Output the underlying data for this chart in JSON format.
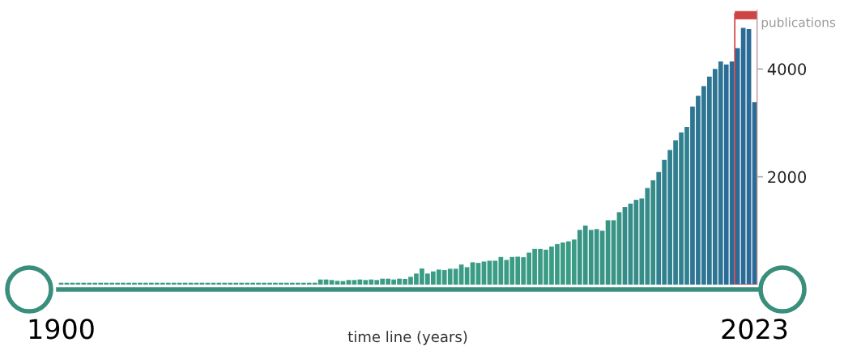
{
  "chart_data": {
    "type": "bar",
    "ylabel": "publications",
    "xlabel": "time line (years)",
    "categories": [
      "1900",
      null,
      null,
      null,
      null,
      null,
      null,
      null,
      null,
      null,
      null,
      null,
      null,
      null,
      null,
      null,
      null,
      null,
      null,
      null,
      null,
      null,
      null,
      null,
      null,
      null,
      null,
      null,
      null,
      null,
      null,
      null,
      null,
      null,
      null,
      null,
      null,
      null,
      null,
      null,
      null,
      null,
      null,
      null,
      null,
      null,
      null,
      null,
      null,
      null,
      null,
      null,
      null,
      null,
      null,
      null,
      null,
      null,
      null,
      null,
      null,
      null,
      null,
      null,
      null,
      null,
      null,
      null,
      null,
      null,
      null,
      null,
      null,
      null,
      null,
      null,
      null,
      null,
      null,
      null,
      null,
      null,
      null,
      null,
      null,
      null,
      null,
      null,
      null,
      null,
      null,
      null,
      null,
      null,
      null,
      null,
      null,
      null,
      null,
      null,
      null,
      null,
      null,
      null,
      null,
      null,
      null,
      null,
      null,
      null,
      null,
      null,
      null,
      null,
      null,
      null,
      null,
      null,
      null,
      null,
      null,
      null,
      null,
      "2023"
    ],
    "values": [
      35,
      35,
      35,
      35,
      35,
      35,
      35,
      35,
      35,
      35,
      35,
      35,
      35,
      35,
      35,
      35,
      35,
      35,
      35,
      35,
      35,
      35,
      35,
      35,
      35,
      35,
      35,
      35,
      35,
      35,
      35,
      35,
      35,
      35,
      35,
      35,
      35,
      35,
      35,
      35,
      35,
      35,
      35,
      35,
      35,
      35,
      95,
      95,
      85,
      70,
      65,
      85,
      85,
      95,
      85,
      95,
      85,
      110,
      110,
      95,
      110,
      105,
      145,
      205,
      299,
      205,
      245,
      279,
      269,
      294,
      294,
      373,
      324,
      414,
      403,
      428,
      443,
      443,
      513,
      458,
      513,
      518,
      508,
      593,
      662,
      662,
      648,
      707,
      752,
      782,
      802,
      836,
      1015,
      1096,
      1015,
      1030,
      1000,
      1194,
      1194,
      1344,
      1439,
      1503,
      1573,
      1598,
      1792,
      1936,
      2090,
      2314,
      2499,
      2678,
      2822,
      2926,
      3305,
      3504,
      3683,
      3858,
      4001,
      4141,
      4082,
      4141,
      4389,
      4763,
      4739,
      3385
    ],
    "colors": [
      "#3b9c86",
      "#3b9c86",
      "#3b9c86",
      "#3b9c86",
      "#3b9c86",
      "#3b9c86",
      "#3b9c86",
      "#3b9c86",
      "#3b9c86",
      "#3b9c86",
      "#3b9c86",
      "#3b9c86",
      "#3b9c86",
      "#3b9c86",
      "#3b9c86",
      "#3b9c86",
      "#3b9c86",
      "#3b9c86",
      "#3b9c86",
      "#3b9c86",
      "#3b9c86",
      "#3b9c86",
      "#3b9c86",
      "#3b9c86",
      "#3b9c86",
      "#3b9c86",
      "#3b9c86",
      "#3b9c86",
      "#3b9c86",
      "#3b9c86",
      "#3b9c86",
      "#3b9c86",
      "#3b9c86",
      "#3b9c86",
      "#3b9c86",
      "#3b9c86",
      "#3b9c86",
      "#3b9c86",
      "#3b9c86",
      "#3b9c86",
      "#3b9c86",
      "#3b9c86",
      "#3b9c86",
      "#3b9c86",
      "#3b9c86",
      "#3b9c86",
      "#3b9c86",
      "#3b9c86",
      "#3b9c86",
      "#3b9c86",
      "#3b9c86",
      "#3b9c86",
      "#3b9c86",
      "#3b9c86",
      "#3b9c86",
      "#3b9c86",
      "#3b9c86",
      "#3b9c86",
      "#3b9c86",
      "#3b9c86",
      "#3b9c86",
      "#3b9c86",
      "#3b9c86",
      "#3b9c86",
      "#3b9c86",
      "#3b9c86",
      "#3b9c86",
      "#3b9c86",
      "#3b9c86",
      "#3b9c86",
      "#3b9c86",
      "#3b9c86",
      "#3b9c86",
      "#3b9c86",
      "#3b9c86",
      "#3b9c86",
      "#3b9c86",
      "#3b9c86",
      "#3b9c86",
      "#3b9c86",
      "#3b9c86",
      "#3b9c86",
      "#3b9c86",
      "#3b9c86",
      "#3b9c86",
      "#3b9c86",
      "#3b9c86",
      "#3b9c86",
      "#3b9c86",
      "#3b9c86",
      "#3b9c86",
      "#3b9c86",
      "#389585",
      "#389585",
      "#389585",
      "#389585",
      "#389585",
      "#389585",
      "#389585",
      "#389585",
      "#358c89",
      "#358c89",
      "#358c89",
      "#358c89",
      "#358c89",
      "#358c89",
      "#31808f",
      "#31808f",
      "#31808f",
      "#31808f",
      "#31808f",
      "#31808f",
      "#2e7594",
      "#2e7594",
      "#2e7594",
      "#2e7594",
      "#2e7594",
      "#2e7594",
      "#2b6b98",
      "#2b6b98",
      "#2b6b98",
      "#2b6b98",
      "#2b6b98",
      "#2b6b98"
    ],
    "ylim": [
      0,
      5100
    ],
    "yticks": [
      2000,
      4000
    ],
    "grid": false,
    "legend": false
  }
}
